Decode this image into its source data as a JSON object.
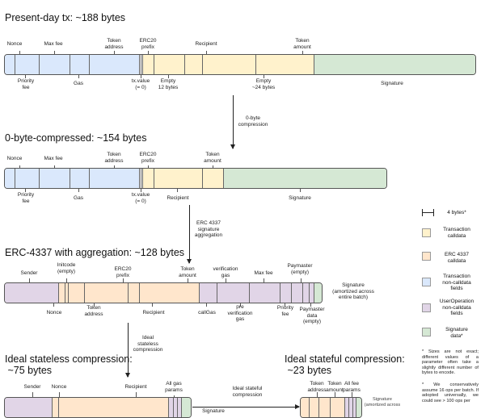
{
  "s1": {
    "title": "Present-day tx: ~188 bytes",
    "top": [
      "Nonce",
      "Max fee",
      "Token\naddress",
      "ERC20\nprefix",
      "Recipient",
      "Token\namount"
    ],
    "bottom": [
      "Priority\nfee",
      "Gas",
      "tx.value\n(= 0)",
      "Empty\n12 bytes",
      "Empty\n~24 bytes",
      "Signature"
    ]
  },
  "a1": "0-byte\ncompression",
  "s2": {
    "title": "0-byte-compressed: ~154 bytes",
    "top": [
      "Nonce",
      "Max fee",
      "Token\naddress",
      "ERC20\nprefix",
      "Token\namount"
    ],
    "bottom": [
      "Priority\nfee",
      "Gas",
      "tx.value\n(= 0)",
      "Recipient",
      "Signature"
    ]
  },
  "a2": "ERC 4337\nsignature\naggregation",
  "s3": {
    "title": "ERC-4337 with aggregation: ~128 bytes",
    "top": [
      "Sender",
      "Initcode\n(empty)",
      "ERC20\nprefix",
      "Token\namount",
      "verification\ngas",
      "Max fee",
      "Paymaster\n(empty)"
    ],
    "right": "Signature\n(amortized across\nentire batch)",
    "bottom": [
      "Nonce",
      "Token\naddress",
      "Recipient",
      "callGas",
      "pre\nverification\ngas",
      "Priority\nfee",
      "Paymaster\ndata\n(empty)"
    ]
  },
  "a3": "Ideal\nstateless\ncompression",
  "a4": "Ideal stateful\ncompression",
  "s4": {
    "title": "Ideal stateless compression:\n ~75 bytes",
    "top": [
      "Sender",
      "Nonce",
      "Recipient",
      "All gas\nparams"
    ],
    "bottom": [
      "Signature"
    ]
  },
  "s5": {
    "title": "Ideal stateful compression:\n ~23 bytes",
    "top": [
      "Token\naddress",
      "Token\namount",
      "All fee\nparams"
    ],
    "right": "Signature\n(amortized across"
  },
  "legend": {
    "scale": "4 bytes*",
    "items": [
      {
        "label": "Transaction\ncalldata",
        "color": "#fff2cc"
      },
      {
        "label": "ERC 4337\ncalldata",
        "color": "#ffe6cc"
      },
      {
        "label": "Transaction\nnon-calldata\nfields",
        "color": "#dae8fc"
      },
      {
        "label": "UserOperation\nnon-calldata\nfields",
        "color": "#e1d5e7"
      },
      {
        "label": "Signature\ndata*",
        "color": "#d5e8d4"
      }
    ],
    "note1": "* Sizes are not exact; different values of a parameter often take a slightly different number of bytes to encode.",
    "note2": "* We conservatively assume 16 ops per batch. If adopted universally, we could see > 100 ops per"
  }
}
